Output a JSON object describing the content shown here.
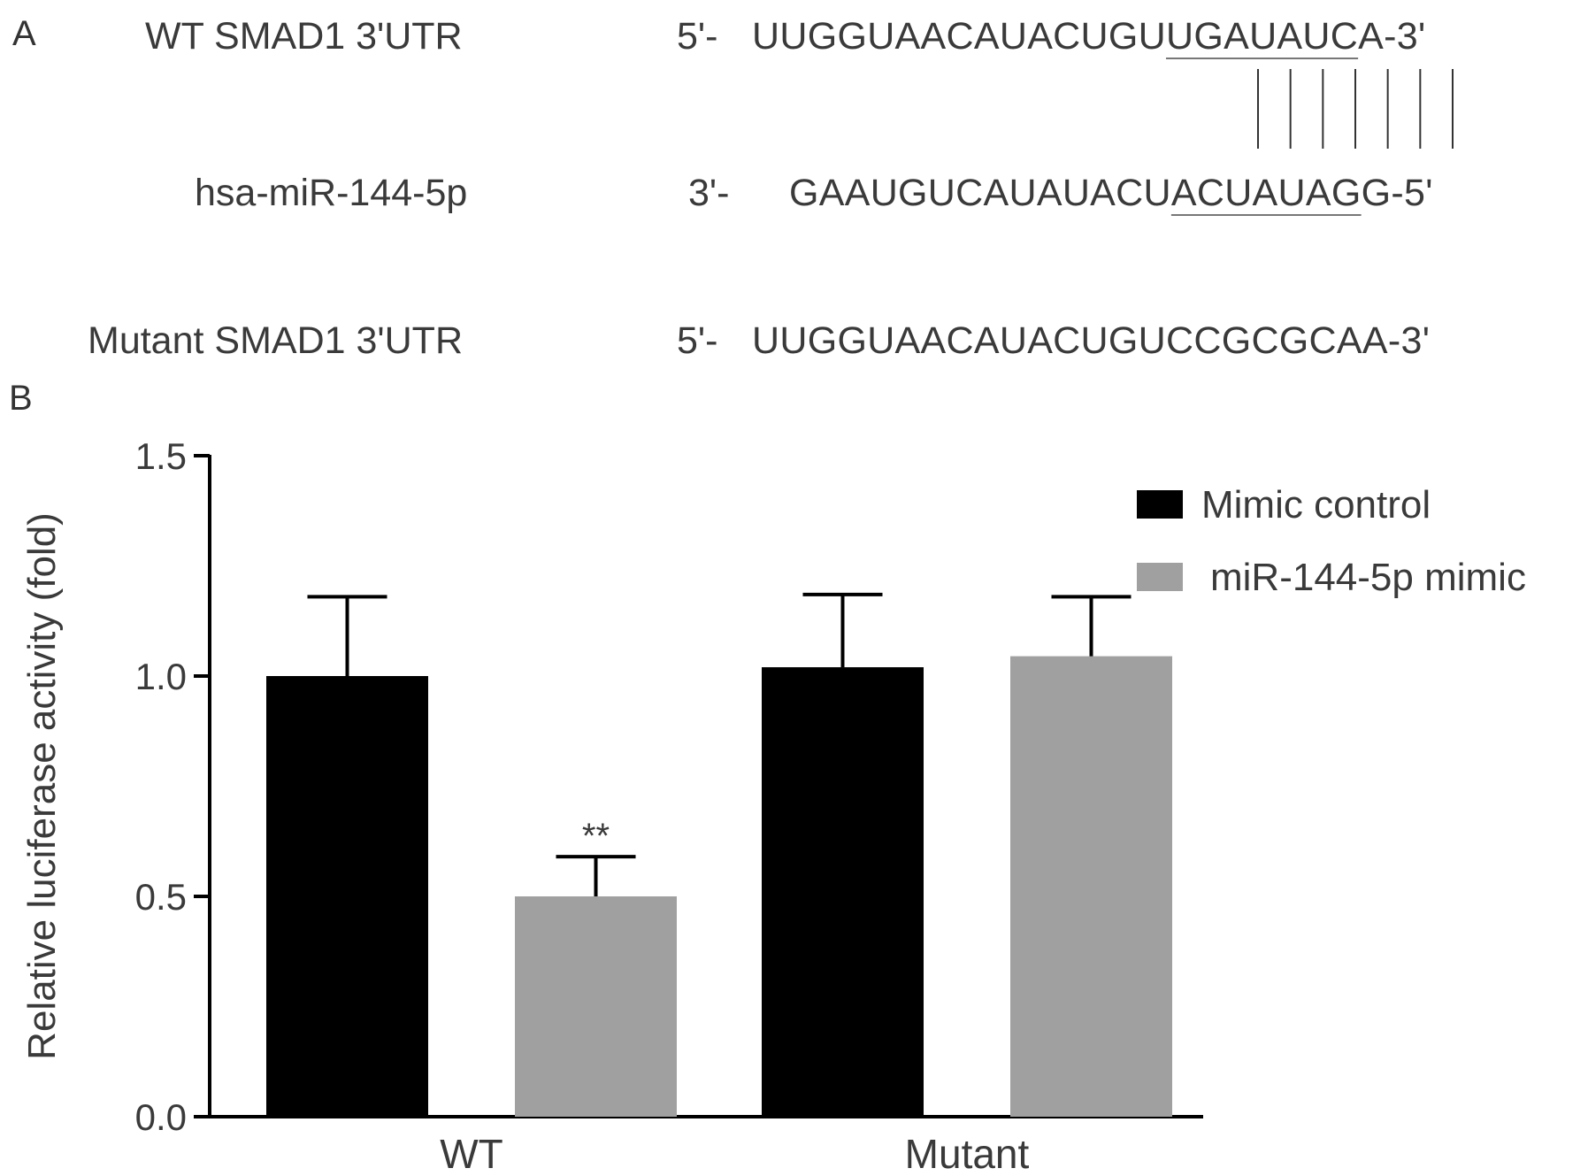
{
  "panel_a": {
    "label": "A",
    "wt": {
      "name": "WT SMAD1 3'UTR",
      "prefix": "5'-",
      "seq_pre": "UUGGUAACAUACUGU",
      "seq_site": "UGAUAUC",
      "seq_post": "A-3'"
    },
    "mir": {
      "name": "hsa-miR-144-5p",
      "prefix": "3'-",
      "seq_pre": "GAAUGUCAUAUACU",
      "seq_site": "ACUAUAG",
      "seq_post": "G-5'"
    },
    "mutant": {
      "name": "Mutant SMAD1 3'UTR",
      "prefix": "5'-",
      "seq": "UUGGUAACAUACUGUCCGCGCAA-3'"
    },
    "pairing_count": 7
  },
  "panel_b": {
    "label": "B"
  },
  "chart_data": {
    "type": "bar",
    "categories": [
      "WT",
      "Mutant"
    ],
    "series": [
      {
        "name": "Mimic control",
        "values": [
          1.0,
          1.02
        ],
        "errors": [
          0.18,
          0.165
        ],
        "color": "#000000"
      },
      {
        "name": "miR-144-5p mimic",
        "values": [
          0.5,
          1.045
        ],
        "errors": [
          0.09,
          0.135
        ],
        "color": "#a0a0a0"
      }
    ],
    "annotations": [
      {
        "category": "WT",
        "series": "miR-144-5p mimic",
        "text": "**"
      }
    ],
    "ylabel": "Relative luciferase activity (fold)",
    "xlabel": "",
    "ylim": [
      0,
      1.5
    ],
    "yticks": [
      "0.0",
      "0.5",
      "1.0",
      "1.5"
    ],
    "legend_position": "top-right",
    "grid": false
  }
}
